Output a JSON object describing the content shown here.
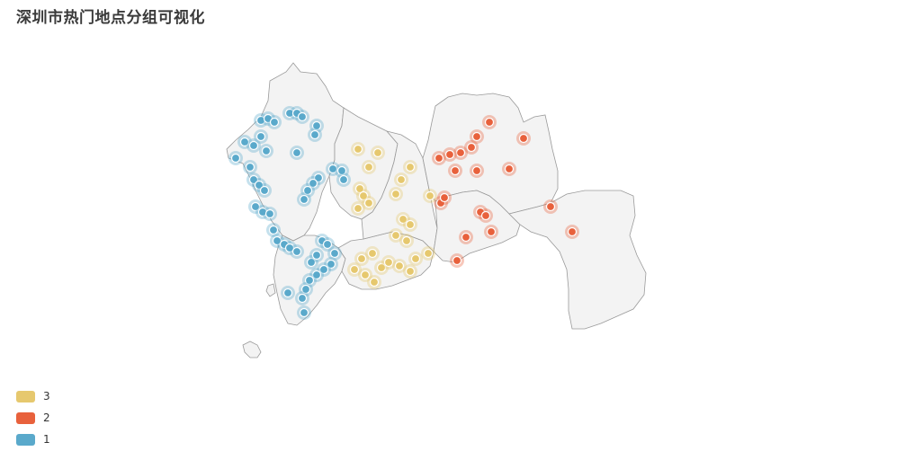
{
  "title": "深圳市热门地点分组可视化",
  "legend": [
    {
      "label": "3",
      "color": "#e6c86e"
    },
    {
      "label": "2",
      "color": "#e8613c"
    },
    {
      "label": "1",
      "color": "#5aa9cb"
    }
  ],
  "map": {
    "fill": "#f3f3f3",
    "stroke": "#9a9a9a"
  }
}
